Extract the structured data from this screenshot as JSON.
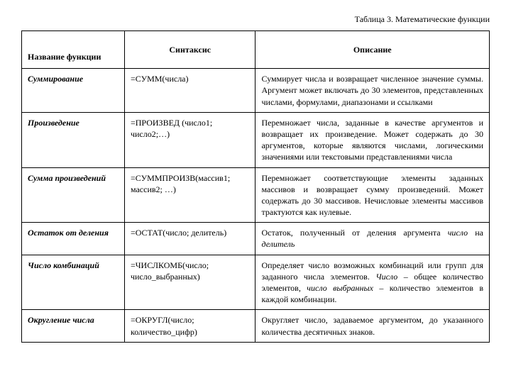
{
  "caption": "Таблица 3. Математические функции",
  "headers": {
    "name": "Название функции",
    "syntax": "Синтаксис",
    "description": "Описание"
  },
  "rows": [
    {
      "name": "Суммирование",
      "syntax": "=СУММ(числа)",
      "description": "Суммирует числа и возвращает численное значение суммы. Аргумент может включать до 30 элементов, представленных числами, формулами, диапазонами и ссылками"
    },
    {
      "name": "Произведение",
      "syntax": "=ПРОИЗВЕД (число1; число2;…)",
      "description": "Перемножает числа, заданные в качестве аргументов и возвращает их произведение. Может содержать до 30 аргументов, которые являются числами, логическими значениями или текстовыми представлениями числа"
    },
    {
      "name": "Сумма произведений",
      "syntax": "=СУММПРОИЗВ(массив1; массив2; …)",
      "description": "Перемножает соответствующие элементы заданных массивов и возвращает сумму произведений. Может содержать до 30 массивов. Нечисловые элементы массивов трактуются как нулевые."
    },
    {
      "name": "Остаток от деления",
      "syntax": "=ОСТАТ(число; делитель)",
      "description_html": "Остаток, полученный от деления аргумента <span class=\"italic\">число</span> на <span class=\"italic\">делитель</span>"
    },
    {
      "name": "Число комбинаций",
      "syntax": "=ЧИСЛКОМБ(число; число_выбранных)",
      "description_html": "Определяет число возможных комбинаций или групп для заданного числа элементов. <span class=\"italic\">Число</span> – общее количество элементов, <span class=\"italic\">число выбранных</span> – количество элементов в каждой комбинации."
    },
    {
      "name": "Округление числа",
      "syntax": "=ОКРУГЛ(число; количество_цифр)",
      "description": "Округляет число, задаваемое аргументом, до указанного количества десятичных знаков."
    }
  ],
  "table": {
    "columns": [
      "name",
      "syntax",
      "description"
    ],
    "col_widths": [
      "22%",
      "28%",
      "50%"
    ],
    "border_color": "#000000",
    "background_color": "#ffffff",
    "font_family": "Times New Roman",
    "cell_fontsize": 12,
    "caption_fontsize": 12
  }
}
